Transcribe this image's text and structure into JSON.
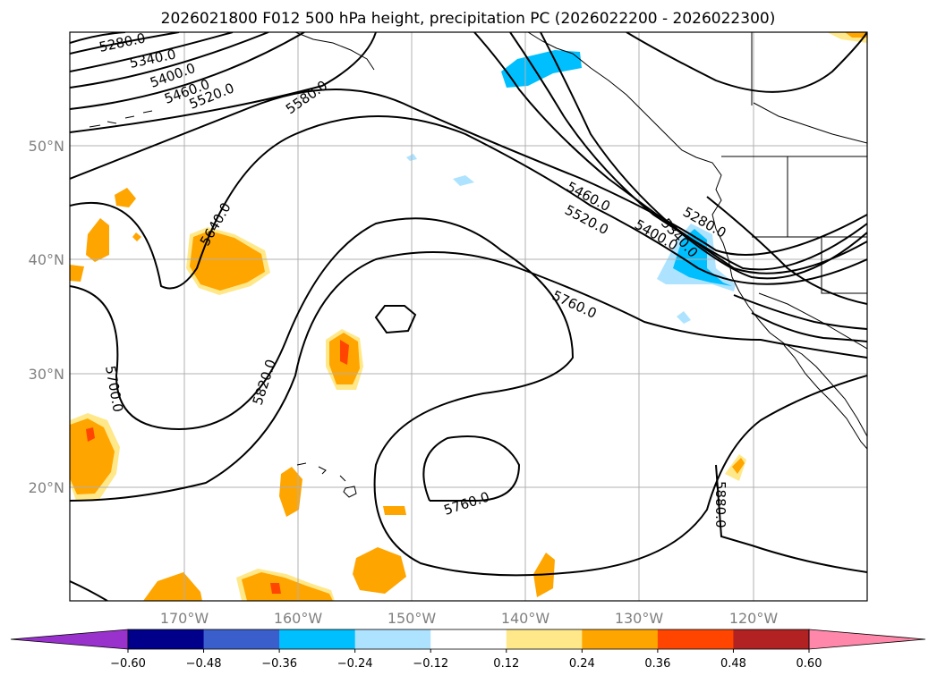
{
  "title": "2026021800 F012 500 hPa height, precipitation PC (2026022200 - 2026022300)",
  "lat_labels": [
    "50°N",
    "40°N",
    "30°N",
    "20°N"
  ],
  "lon_labels": [
    "170°W",
    "160°W",
    "150°W",
    "140°W",
    "130°W",
    "120°W"
  ],
  "colorbar": {
    "ticks": [
      "−0.60",
      "−0.48",
      "−0.36",
      "−0.24",
      "−0.12",
      "0.12",
      "0.24",
      "0.36",
      "0.48",
      "0.60"
    ],
    "colors": [
      "#9932cc",
      "#00008b",
      "#3a5fcd",
      "#00bfff",
      "#aee3ff",
      "#ffffff",
      "#ffe88a",
      "#ffa500",
      "#ff4500",
      "#b22222",
      "#ff88aa",
      "#ff88aa"
    ]
  },
  "contour_labels": {
    "c5280a": "5280.0",
    "c5340a": "5340.0",
    "c5400a": "5400.0",
    "c5460a": "5460.0",
    "c5520a": "5520.0",
    "c5580a": "5580.0",
    "c5640": "5640.0",
    "c5700": "5700.0",
    "c5820": "5820.0",
    "c5460b": "5460.0",
    "c5520b": "5520.0",
    "c5400b": "5400.0",
    "c5340b": "5340.0",
    "c5280b": "5280.0",
    "c5760a": "5760.0",
    "c5760b": "5760.0",
    "c5880": "5880.0"
  },
  "colors": {
    "orange": "#ffa500",
    "light_yellow": "#ffe88a",
    "red_orange": "#ff4500",
    "deep_sky_blue": "#00bfff",
    "light_blue": "#aee3ff"
  }
}
